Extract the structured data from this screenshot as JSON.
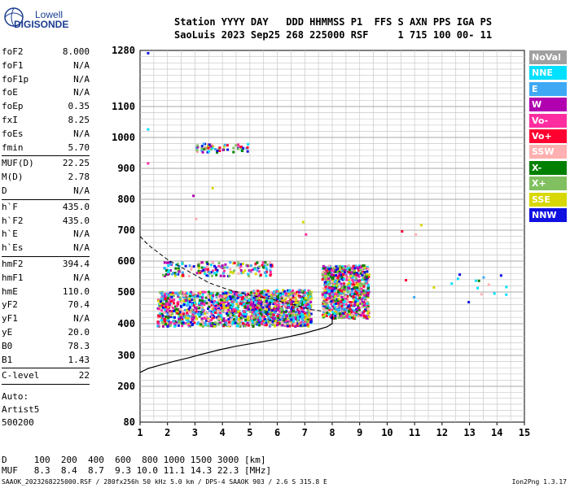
{
  "logo": {
    "line1": "Lowell",
    "line2": "DIGISONDE"
  },
  "header": {
    "line1": "Station YYYY DAY   DDD HHMMSS P1  FFS S AXN PPS IGA PS",
    "line2": "SaoLuis 2023 Sep25 268 225000 RSF     1 715 100 00- 11"
  },
  "params": [
    {
      "label": "foF2",
      "value": "8.000"
    },
    {
      "label": "foF1",
      "value": "N/A"
    },
    {
      "label": "foF1p",
      "value": "N/A"
    },
    {
      "label": "foE",
      "value": "N/A"
    },
    {
      "label": "foEp",
      "value": "0.35"
    },
    {
      "label": "fxI",
      "value": "8.25"
    },
    {
      "label": "foEs",
      "value": "N/A"
    },
    {
      "label": "fmin",
      "value": "5.70"
    },
    {
      "sep": true
    },
    {
      "label": "MUF(D)",
      "value": "22.25"
    },
    {
      "label": "M(D)",
      "value": "2.78"
    },
    {
      "label": "D",
      "value": "N/A"
    },
    {
      "sep": true
    },
    {
      "label": "h`F",
      "value": "435.0"
    },
    {
      "label": "h`F2",
      "value": "435.0"
    },
    {
      "label": "h`E",
      "value": "N/A"
    },
    {
      "label": "h`Es",
      "value": "N/A"
    },
    {
      "sep": true
    },
    {
      "label": "hmF2",
      "value": "394.4"
    },
    {
      "label": "hmF1",
      "value": "N/A"
    },
    {
      "label": "hmE",
      "value": "110.0"
    },
    {
      "label": "yF2",
      "value": "70.4"
    },
    {
      "label": "yF1",
      "value": "N/A"
    },
    {
      "label": "yE",
      "value": "20.0"
    },
    {
      "label": "B0",
      "value": "78.3"
    },
    {
      "label": "B1",
      "value": "1.43"
    },
    {
      "sep": true
    },
    {
      "label": "C-level",
      "value": "22"
    },
    {
      "sep": true
    }
  ],
  "auto": {
    "line1": "Auto:",
    "line2": "Artist5",
    "line3": "500200"
  },
  "bottom": {
    "d_line": "D     100  200  400  600  800 1000 1500 3000 [km]",
    "muf_line": "MUF   8.3  8.4  8.7  9.3 10.0 11.1 14.3 22.3 [MHz]"
  },
  "footer": {
    "left": "SAAOK_2023268225000.RSF / 280fx256h 50 kHz 5.0 km / DPS-4 SAAOK 903 / 2.6 S 315.8 E",
    "right": "Ion2Png 1.3.17"
  },
  "legend": [
    {
      "label": "NoVal",
      "color": "#a0a0a0"
    },
    {
      "label": "NNE",
      "color": "#00e0ff"
    },
    {
      "label": "E",
      "color": "#3ea8f5"
    },
    {
      "label": "W",
      "color": "#b000b0"
    },
    {
      "label": "Vo-",
      "color": "#ff2ea0"
    },
    {
      "label": "Vo+",
      "color": "#ff0030"
    },
    {
      "label": "SSW",
      "color": "#ffb0b0"
    },
    {
      "label": "X-",
      "color": "#008000"
    },
    {
      "label": "X+",
      "color": "#80c060"
    },
    {
      "label": "SSE",
      "color": "#d8d800"
    },
    {
      "label": "NNW",
      "color": "#1010e0"
    }
  ],
  "chart_data": {
    "type": "scatter",
    "xlim": [
      1,
      15
    ],
    "x_ticks": [
      1,
      2,
      3,
      4,
      5,
      6,
      7,
      8,
      9,
      10,
      11,
      12,
      13,
      14,
      15
    ],
    "y_ticks": [
      80,
      200,
      300,
      400,
      500,
      600,
      700,
      800,
      900,
      1000,
      1100,
      1280
    ],
    "y_scale": "nonlinear",
    "grid": true,
    "clusters": [
      {
        "x": [
          1.6,
          5.0
        ],
        "y": [
          395,
          505
        ],
        "density": "high"
      },
      {
        "x": [
          5.0,
          7.2
        ],
        "y": [
          395,
          510
        ],
        "density": "high"
      },
      {
        "x": [
          7.6,
          9.3
        ],
        "y": [
          420,
          590
        ],
        "density": "high"
      },
      {
        "x": [
          1.8,
          5.8
        ],
        "y": [
          555,
          600
        ],
        "density": "medium"
      },
      {
        "x": [
          3.0,
          4.9
        ],
        "y": [
          955,
          985
        ],
        "density": "low"
      },
      {
        "x": [
          10.2,
          14.3
        ],
        "y": [
          470,
          560
        ],
        "density": "sparse"
      }
    ],
    "profile_curve": {
      "x": [
        1.0,
        1.3,
        1.7,
        2.2,
        2.8,
        3.3,
        3.9,
        4.5,
        5.1,
        5.7,
        6.3,
        6.9,
        7.5,
        7.8,
        8.0,
        8.0
      ],
      "y": [
        245,
        258,
        268,
        280,
        293,
        305,
        318,
        329,
        338,
        347,
        357,
        368,
        382,
        390,
        400,
        430
      ]
    },
    "dashed_curve": {
      "x": [
        1.0,
        1.3,
        1.7,
        2.0,
        2.4,
        2.9,
        3.5,
        4.2,
        5.0,
        5.8,
        6.6,
        7.2,
        7.6
      ],
      "y": [
        680,
        652,
        625,
        605,
        585,
        560,
        530,
        508,
        490,
        477,
        460,
        445,
        440
      ]
    }
  }
}
